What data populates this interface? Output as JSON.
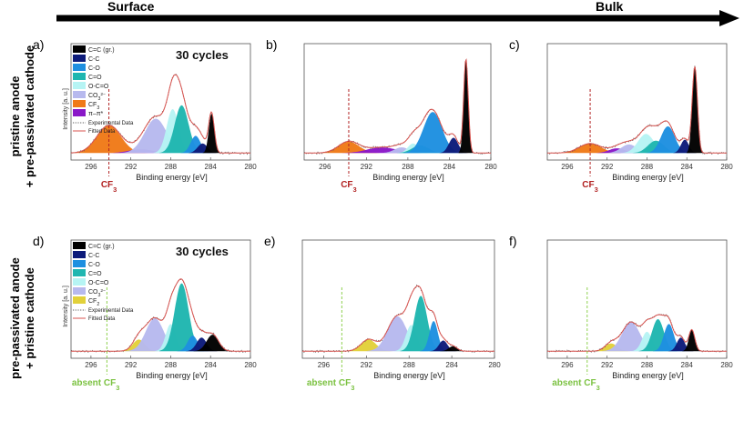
{
  "header": {
    "surface_label": "Surface",
    "bulk_label": "Bulk"
  },
  "row_labels": {
    "top_line1": "pristine anode",
    "top_line2": "+ pre-passivated cathode",
    "bottom_line1": "pre-passivated anode",
    "bottom_line2": "+ pristine cathode"
  },
  "colors": {
    "CC_gr": "#000000",
    "C_C": "#0d1b7a",
    "C_O": "#1e8fe0",
    "C_eq_O": "#1fb6b0",
    "O_C_eq_O": "#b6f4f4",
    "CO3": "#b7b9ee",
    "CF3": "#f07a18",
    "CF2": "#e2d13a",
    "pi_pi": "#8a18c8",
    "experimental": "#5a5a5a",
    "fitted": "#d9534f",
    "marker_cf3": "#b22222",
    "marker_absent": "#8fd14f",
    "label_cf3": "#b22222",
    "label_absent": "#7cc242"
  },
  "legend_top": [
    {
      "key": "CC_gr",
      "label": "C=C (gr.)"
    },
    {
      "key": "C_C",
      "label": "C-C"
    },
    {
      "key": "C_O",
      "label": "C-O"
    },
    {
      "key": "C_eq_O",
      "label": "C=O"
    },
    {
      "key": "O_C_eq_O",
      "label": "O-C=O"
    },
    {
      "key": "CO3",
      "label": "CO3"
    },
    {
      "key": "CF3",
      "label": "CF3"
    },
    {
      "key": "pi_pi",
      "label": "π–π*"
    }
  ],
  "legend_bottom": [
    {
      "key": "CC_gr",
      "label": "C=C (gr.)"
    },
    {
      "key": "C_C",
      "label": "C-C"
    },
    {
      "key": "C_O",
      "label": "C-O"
    },
    {
      "key": "C_eq_O",
      "label": "C=O"
    },
    {
      "key": "O_C_eq_O",
      "label": "O-C=O"
    },
    {
      "key": "CO3",
      "label": "CO3"
    },
    {
      "key": "CF2",
      "label": "CF2"
    }
  ],
  "legend_lines": {
    "experimental": "Experimental Data",
    "fitted": "Fitted Data"
  },
  "ylabel": "Intensity [a. u.]",
  "chart_data": [
    {
      "id": "a",
      "type": "area",
      "label": "a)",
      "annotation": "30 cycles",
      "xlabel": "Binding energy [eV]",
      "xlim": [
        298,
        280
      ],
      "xticks": [
        296,
        292,
        288,
        284,
        280
      ],
      "show_ylabel": true,
      "legend": "legend_top",
      "marker": {
        "x": 294.2,
        "text": "CF3",
        "kind": "cf3"
      },
      "peaks": [
        {
          "key": "CF3",
          "center": 294.2,
          "height": 0.29,
          "sigma": 1.2
        },
        {
          "key": "pi_pi",
          "center": 291.0,
          "height": 0.04,
          "sigma": 1.2
        },
        {
          "key": "CO3",
          "center": 289.5,
          "height": 0.36,
          "sigma": 1.1
        },
        {
          "key": "O_C_eq_O",
          "center": 287.8,
          "height": 0.46,
          "sigma": 0.6
        },
        {
          "key": "C_eq_O",
          "center": 286.9,
          "height": 0.5,
          "sigma": 0.7
        },
        {
          "key": "C_O",
          "center": 285.5,
          "height": 0.18,
          "sigma": 0.5
        },
        {
          "key": "C_C",
          "center": 284.8,
          "height": 0.1,
          "sigma": 0.5
        },
        {
          "key": "CC_gr",
          "center": 283.9,
          "height": 0.41,
          "sigma": 0.28
        }
      ]
    },
    {
      "id": "b",
      "type": "area",
      "label": "b)",
      "annotation": "",
      "xlabel": "Binding energy [eV]",
      "xlim": [
        298,
        280
      ],
      "xticks": [
        296,
        292,
        288,
        284,
        280
      ],
      "show_ylabel": false,
      "legend": "",
      "marker": {
        "x": 293.7,
        "text": "CF3",
        "kind": "cf3"
      },
      "peaks": [
        {
          "key": "CF3",
          "center": 293.7,
          "height": 0.12,
          "sigma": 1.0
        },
        {
          "key": "pi_pi",
          "center": 290.5,
          "height": 0.06,
          "sigma": 1.4
        },
        {
          "key": "CO3",
          "center": 288.6,
          "height": 0.06,
          "sigma": 0.7
        },
        {
          "key": "O_C_eq_O",
          "center": 287.5,
          "height": 0.1,
          "sigma": 0.5
        },
        {
          "key": "C_eq_O",
          "center": 286.8,
          "height": 0.08,
          "sigma": 0.8
        },
        {
          "key": "C_O",
          "center": 285.6,
          "height": 0.43,
          "sigma": 0.9
        },
        {
          "key": "C_C",
          "center": 283.6,
          "height": 0.16,
          "sigma": 0.45
        },
        {
          "key": "CC_gr",
          "center": 282.4,
          "height": 0.98,
          "sigma": 0.22
        }
      ]
    },
    {
      "id": "c",
      "type": "area",
      "label": "c)",
      "annotation": "",
      "xlabel": "Binding energy [eV]",
      "xlim": [
        298,
        280
      ],
      "xticks": [
        296,
        292,
        288,
        284,
        280
      ],
      "show_ylabel": false,
      "legend": "",
      "marker": {
        "x": 293.7,
        "text": "CF3",
        "kind": "cf3"
      },
      "peaks": [
        {
          "key": "CF3",
          "center": 293.7,
          "height": 0.1,
          "sigma": 1.1
        },
        {
          "key": "pi_pi",
          "center": 291.0,
          "height": 0.05,
          "sigma": 0.8
        },
        {
          "key": "CO3",
          "center": 289.8,
          "height": 0.09,
          "sigma": 0.8
        },
        {
          "key": "O_C_eq_O",
          "center": 288.1,
          "height": 0.2,
          "sigma": 0.8
        },
        {
          "key": "C_eq_O",
          "center": 287.1,
          "height": 0.13,
          "sigma": 0.8
        },
        {
          "key": "C_O",
          "center": 285.9,
          "height": 0.28,
          "sigma": 0.7
        },
        {
          "key": "C_C",
          "center": 284.2,
          "height": 0.14,
          "sigma": 0.4
        },
        {
          "key": "CC_gr",
          "center": 283.2,
          "height": 0.9,
          "sigma": 0.26
        }
      ]
    },
    {
      "id": "d",
      "type": "area",
      "label": "d)",
      "annotation": "30 cycles",
      "xlabel": "Binding energy [eV]",
      "xlim": [
        298,
        280
      ],
      "xticks": [
        296,
        292,
        288,
        284,
        280
      ],
      "show_ylabel": true,
      "legend": "legend_bottom",
      "marker": {
        "x": 294.4,
        "text": "absent CF3",
        "kind": "absent"
      },
      "peaks": [
        {
          "key": "CF2",
          "center": 291.2,
          "height": 0.12,
          "sigma": 0.6
        },
        {
          "key": "CO3",
          "center": 289.6,
          "height": 0.34,
          "sigma": 0.9
        },
        {
          "key": "O_C_eq_O",
          "center": 288.0,
          "height": 0.28,
          "sigma": 0.5
        },
        {
          "key": "C_eq_O",
          "center": 286.9,
          "height": 0.7,
          "sigma": 0.7
        },
        {
          "key": "C_O",
          "center": 285.8,
          "height": 0.16,
          "sigma": 0.5
        },
        {
          "key": "C_C",
          "center": 284.9,
          "height": 0.14,
          "sigma": 0.5
        },
        {
          "key": "CC_gr",
          "center": 283.8,
          "height": 0.17,
          "sigma": 0.6
        }
      ]
    },
    {
      "id": "e",
      "type": "area",
      "label": "e)",
      "annotation": "",
      "xlabel": "Binding energy [eV]",
      "xlim": [
        298,
        280
      ],
      "xticks": [
        296,
        292,
        288,
        284,
        280
      ],
      "show_ylabel": false,
      "legend": "",
      "marker": {
        "x": 294.3,
        "text": "absent CF3",
        "kind": "absent"
      },
      "peaks": [
        {
          "key": "CF2",
          "center": 291.8,
          "height": 0.12,
          "sigma": 0.7
        },
        {
          "key": "CO3",
          "center": 289.1,
          "height": 0.36,
          "sigma": 0.9
        },
        {
          "key": "O_C_eq_O",
          "center": 287.8,
          "height": 0.27,
          "sigma": 0.5
        },
        {
          "key": "C_eq_O",
          "center": 286.9,
          "height": 0.57,
          "sigma": 0.6
        },
        {
          "key": "C_O",
          "center": 285.7,
          "height": 0.31,
          "sigma": 0.4
        },
        {
          "key": "C_C",
          "center": 284.8,
          "height": 0.11,
          "sigma": 0.4
        },
        {
          "key": "CC_gr",
          "center": 283.9,
          "height": 0.05,
          "sigma": 0.4
        }
      ]
    },
    {
      "id": "f",
      "type": "area",
      "label": "f)",
      "annotation": "",
      "xlabel": "Binding energy [eV]",
      "xlim": [
        298,
        280
      ],
      "xticks": [
        296,
        292,
        288,
        284,
        280
      ],
      "show_ylabel": false,
      "legend": "",
      "marker": {
        "x": 294.0,
        "text": "absent CF3",
        "kind": "absent"
      },
      "peaks": [
        {
          "key": "CF2",
          "center": 291.6,
          "height": 0.08,
          "sigma": 0.6
        },
        {
          "key": "CO3",
          "center": 289.6,
          "height": 0.3,
          "sigma": 0.9
        },
        {
          "key": "O_C_eq_O",
          "center": 288.0,
          "height": 0.2,
          "sigma": 0.5
        },
        {
          "key": "C_eq_O",
          "center": 286.9,
          "height": 0.33,
          "sigma": 0.6
        },
        {
          "key": "C_O",
          "center": 285.8,
          "height": 0.28,
          "sigma": 0.5
        },
        {
          "key": "C_C",
          "center": 284.6,
          "height": 0.14,
          "sigma": 0.4
        },
        {
          "key": "CC_gr",
          "center": 283.5,
          "height": 0.22,
          "sigma": 0.3
        }
      ]
    }
  ]
}
